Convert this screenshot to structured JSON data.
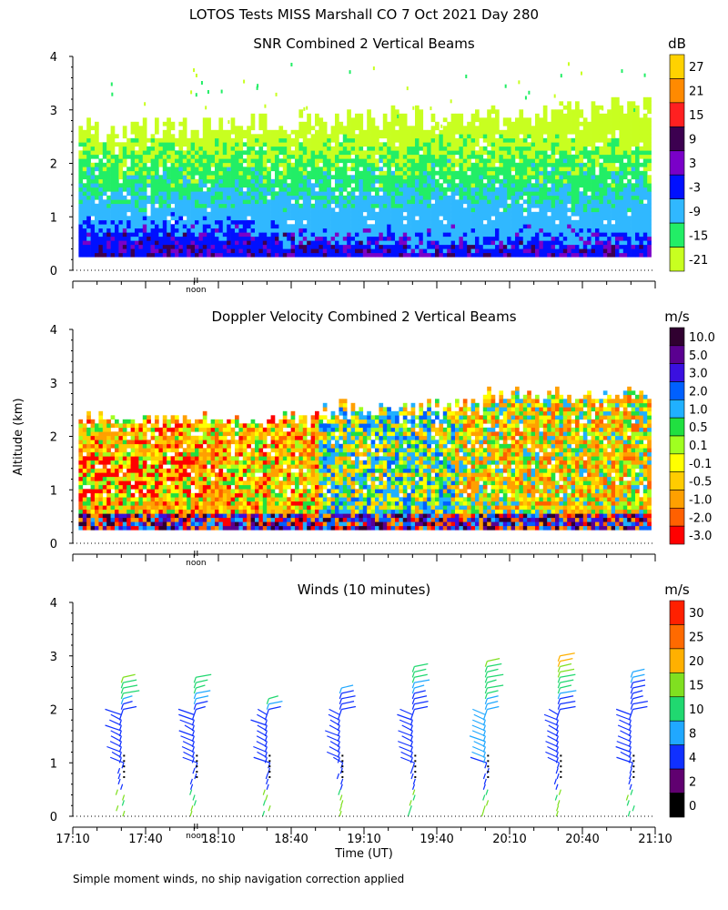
{
  "header": {
    "title": "LOTOS Tests MISS Marshall CO   7 Oct 2021 Day 280",
    "footnote": "Simple moment winds, no ship navigation correction applied"
  },
  "chart_data": [
    {
      "type": "heatmap",
      "id": "snr",
      "title": "SNR Combined 2 Vertical Beams",
      "xlabel": "",
      "ylabel": "",
      "yticks": [
        "0",
        "1",
        "2",
        "3",
        "4"
      ],
      "ylim": [
        0,
        4
      ],
      "xlim": [
        "17:10",
        "21:10"
      ],
      "noon_marker": "noon",
      "colorbar": {
        "units": "dB",
        "labels": [
          "27",
          "21",
          "15",
          "9",
          "3",
          "-3",
          "-9",
          "-15",
          "-21"
        ],
        "colors": [
          "#ffd200",
          "#ff8a00",
          "#ff2020",
          "#3c0050",
          "#7a00c8",
          "#0010ff",
          "#30b8ff",
          "#22ee66",
          "#c8ff20"
        ]
      },
      "series_summary": {
        "layers": [
          {
            "altitude_km": [
              0.25,
              0.6
            ],
            "value_db": 3
          },
          {
            "altitude_km": [
              0.6,
              1.2
            ],
            "value_db": -6
          },
          {
            "altitude_km": [
              1.2,
              2.0
            ],
            "value_db": -12
          },
          {
            "altitude_km": [
              2.0,
              2.6
            ],
            "value_db": -18
          }
        ],
        "top_of_signal_km": {
          "17:10": 2.6,
          "19:10": 2.7,
          "21:10": 3.0
        }
      }
    },
    {
      "type": "heatmap",
      "id": "doppler",
      "title": "Doppler Velocity Combined 2 Vertical Beams",
      "xlabel": "",
      "ylabel": "Altitude (km)",
      "yticks": [
        "0",
        "1",
        "2",
        "3",
        "4"
      ],
      "ylim": [
        0,
        4
      ],
      "xlim": [
        "17:10",
        "21:10"
      ],
      "noon_marker": "noon",
      "colorbar": {
        "units": "m/s",
        "labels": [
          "10.0",
          "5.0",
          "3.0",
          "2.0",
          "1.0",
          "0.5",
          "0.1",
          "-0.1",
          "-0.5",
          "-1.0",
          "-2.0",
          "-3.0"
        ],
        "colors": [
          "#300030",
          "#5a0090",
          "#3a10e0",
          "#0060ff",
          "#20b0ff",
          "#20e040",
          "#a0ff20",
          "#ffff00",
          "#ffcc00",
          "#ffa000",
          "#ff6000",
          "#ff0000"
        ]
      },
      "series_summary": {
        "region_values_mps": [
          {
            "time": [
              "17:10",
              "18:40"
            ],
            "altitude_km": [
              0.5,
              2.3
            ],
            "value": -1.0
          },
          {
            "time": [
              "19:20",
              "20:10"
            ],
            "altitude_km": [
              0.5,
              2.5
            ],
            "value": 1.0
          },
          {
            "time": [
              "20:10",
              "21:10"
            ],
            "altitude_km": [
              0.5,
              2.8
            ],
            "value": -0.5
          }
        ]
      }
    },
    {
      "type": "wind_barbs",
      "id": "winds",
      "title": "Winds (10 minutes)",
      "xlabel": "Time (UT)",
      "ylabel": "",
      "yticks": [
        "0",
        "1",
        "2",
        "3",
        "4"
      ],
      "ylim": [
        0,
        4
      ],
      "xticks": [
        "17:10",
        "17:40",
        "18:10",
        "18:40",
        "19:10",
        "19:40",
        "20:10",
        "20:40",
        "21:10"
      ],
      "noon_marker": "noon",
      "colorbar": {
        "units": "m/s",
        "labels": [
          "30",
          "25",
          "20",
          "15",
          "10",
          "8",
          "4",
          "2",
          "0"
        ],
        "colors": [
          "#ff2000",
          "#ff6a00",
          "#ffb000",
          "#80e020",
          "#20d870",
          "#20a8ff",
          "#1030ff",
          "#600070",
          "#000000"
        ]
      },
      "profiles": [
        {
          "time": "17:30",
          "top_km": 2.7,
          "speed_upper_mps": 6,
          "speed_top_mps": 18
        },
        {
          "time": "18:00",
          "top_km": 2.7,
          "speed_upper_mps": 6,
          "speed_top_mps": 14
        },
        {
          "time": "18:30",
          "top_km": 2.3,
          "speed_upper_mps": 6,
          "speed_top_mps": 14
        },
        {
          "time": "19:00",
          "top_km": 2.5,
          "speed_upper_mps": 4,
          "speed_top_mps": 10
        },
        {
          "time": "19:30",
          "top_km": 2.9,
          "speed_upper_mps": 4,
          "speed_top_mps": 14
        },
        {
          "time": "20:00",
          "top_km": 3.0,
          "speed_upper_mps": 8,
          "speed_top_mps": 16
        },
        {
          "time": "20:30",
          "top_km": 3.1,
          "speed_upper_mps": 4,
          "speed_top_mps": 24
        },
        {
          "time": "21:00",
          "top_km": 2.8,
          "speed_upper_mps": 4,
          "speed_top_mps": 10
        }
      ]
    }
  ]
}
